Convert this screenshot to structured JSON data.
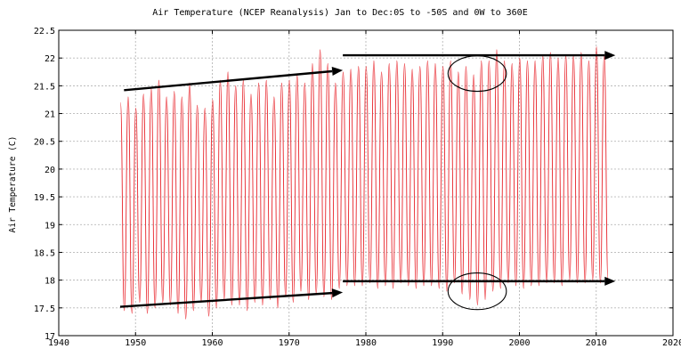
{
  "chart_data": {
    "type": "line",
    "title": "Air Temperature (NCEP Reanalysis) Jan to Dec:0S to -50S and 0W to 360E",
    "xlabel": "",
    "ylabel": "Air Temperature (C)",
    "xlim": [
      1940,
      2020
    ],
    "ylim": [
      17,
      22.5
    ],
    "x_ticks": [
      1940,
      1950,
      1960,
      1970,
      1980,
      1990,
      2000,
      2010,
      2020
    ],
    "y_ticks": [
      17,
      17.5,
      18,
      18.5,
      19,
      19.5,
      20,
      20.5,
      21,
      21.5,
      22,
      22.5
    ],
    "x_tick_labels": [
      "1940",
      "1950",
      "1960",
      "1970",
      "1980",
      "1990",
      "2000",
      "2010",
      "2020"
    ],
    "y_tick_labels": [
      "17",
      "17.5",
      "18",
      "18.5",
      "19",
      "19.5",
      "20",
      "20.5",
      "21",
      "21.5",
      "22",
      "22.5"
    ],
    "grid": true,
    "series": [
      {
        "color": "#e8242b",
        "sampling": "monthly (Jan and Jul extremes)",
        "start_year": 1948,
        "end_year": 2011,
        "annual_max": [
          21.2,
          21.3,
          21.1,
          21.35,
          21.45,
          21.6,
          21.3,
          21.4,
          21.3,
          21.55,
          21.15,
          21.1,
          21.25,
          21.6,
          21.75,
          21.5,
          21.6,
          21.35,
          21.55,
          21.6,
          21.3,
          21.55,
          21.6,
          21.7,
          21.55,
          21.9,
          22.15,
          21.9,
          21.55,
          21.75,
          21.8,
          21.85,
          21.85,
          21.95,
          21.75,
          21.9,
          21.95,
          21.9,
          21.8,
          21.85,
          21.95,
          21.9,
          21.85,
          21.95,
          21.75,
          21.85,
          21.7,
          21.95,
          21.95,
          22.15,
          21.95,
          21.9,
          22.0,
          21.95,
          21.95,
          22.05,
          22.1,
          22.0,
          22.05,
          22.05,
          22.1,
          21.95,
          22.2,
          22.05
        ],
        "annual_min": [
          17.45,
          17.4,
          17.6,
          17.4,
          17.5,
          17.6,
          17.55,
          17.4,
          17.3,
          17.45,
          17.6,
          17.35,
          17.5,
          17.65,
          17.55,
          17.55,
          17.45,
          17.6,
          17.55,
          17.65,
          17.5,
          17.7,
          17.6,
          17.8,
          17.65,
          17.75,
          17.7,
          17.65,
          17.85,
          17.9,
          17.9,
          17.9,
          17.95,
          17.85,
          17.9,
          17.85,
          17.95,
          17.9,
          17.85,
          17.9,
          17.9,
          17.85,
          17.8,
          17.95,
          17.75,
          17.65,
          17.55,
          17.65,
          17.8,
          17.85,
          17.95,
          17.9,
          17.85,
          17.9,
          17.9,
          17.95,
          17.95,
          17.9,
          18.0,
          17.95,
          17.95,
          18.0,
          17.95,
          18.0
        ]
      }
    ],
    "annotations": [
      {
        "type": "arrow",
        "from": [
          1948.5,
          21.42
        ],
        "to": [
          1977,
          21.78
        ]
      },
      {
        "type": "arrow",
        "from": [
          1977,
          22.05
        ],
        "to": [
          2012.5,
          22.05
        ]
      },
      {
        "type": "arrow",
        "from": [
          1948,
          17.52
        ],
        "to": [
          1977,
          17.78
        ]
      },
      {
        "type": "arrow",
        "from": [
          1977,
          17.98
        ],
        "to": [
          2012.5,
          17.98
        ]
      },
      {
        "type": "circle",
        "center": [
          1994.5,
          21.72
        ],
        "radius_years": 3.8,
        "radius_temp": 0.32
      },
      {
        "type": "circle",
        "center": [
          1994.5,
          17.8
        ],
        "radius_years": 3.8,
        "radius_temp": 0.33
      }
    ]
  }
}
